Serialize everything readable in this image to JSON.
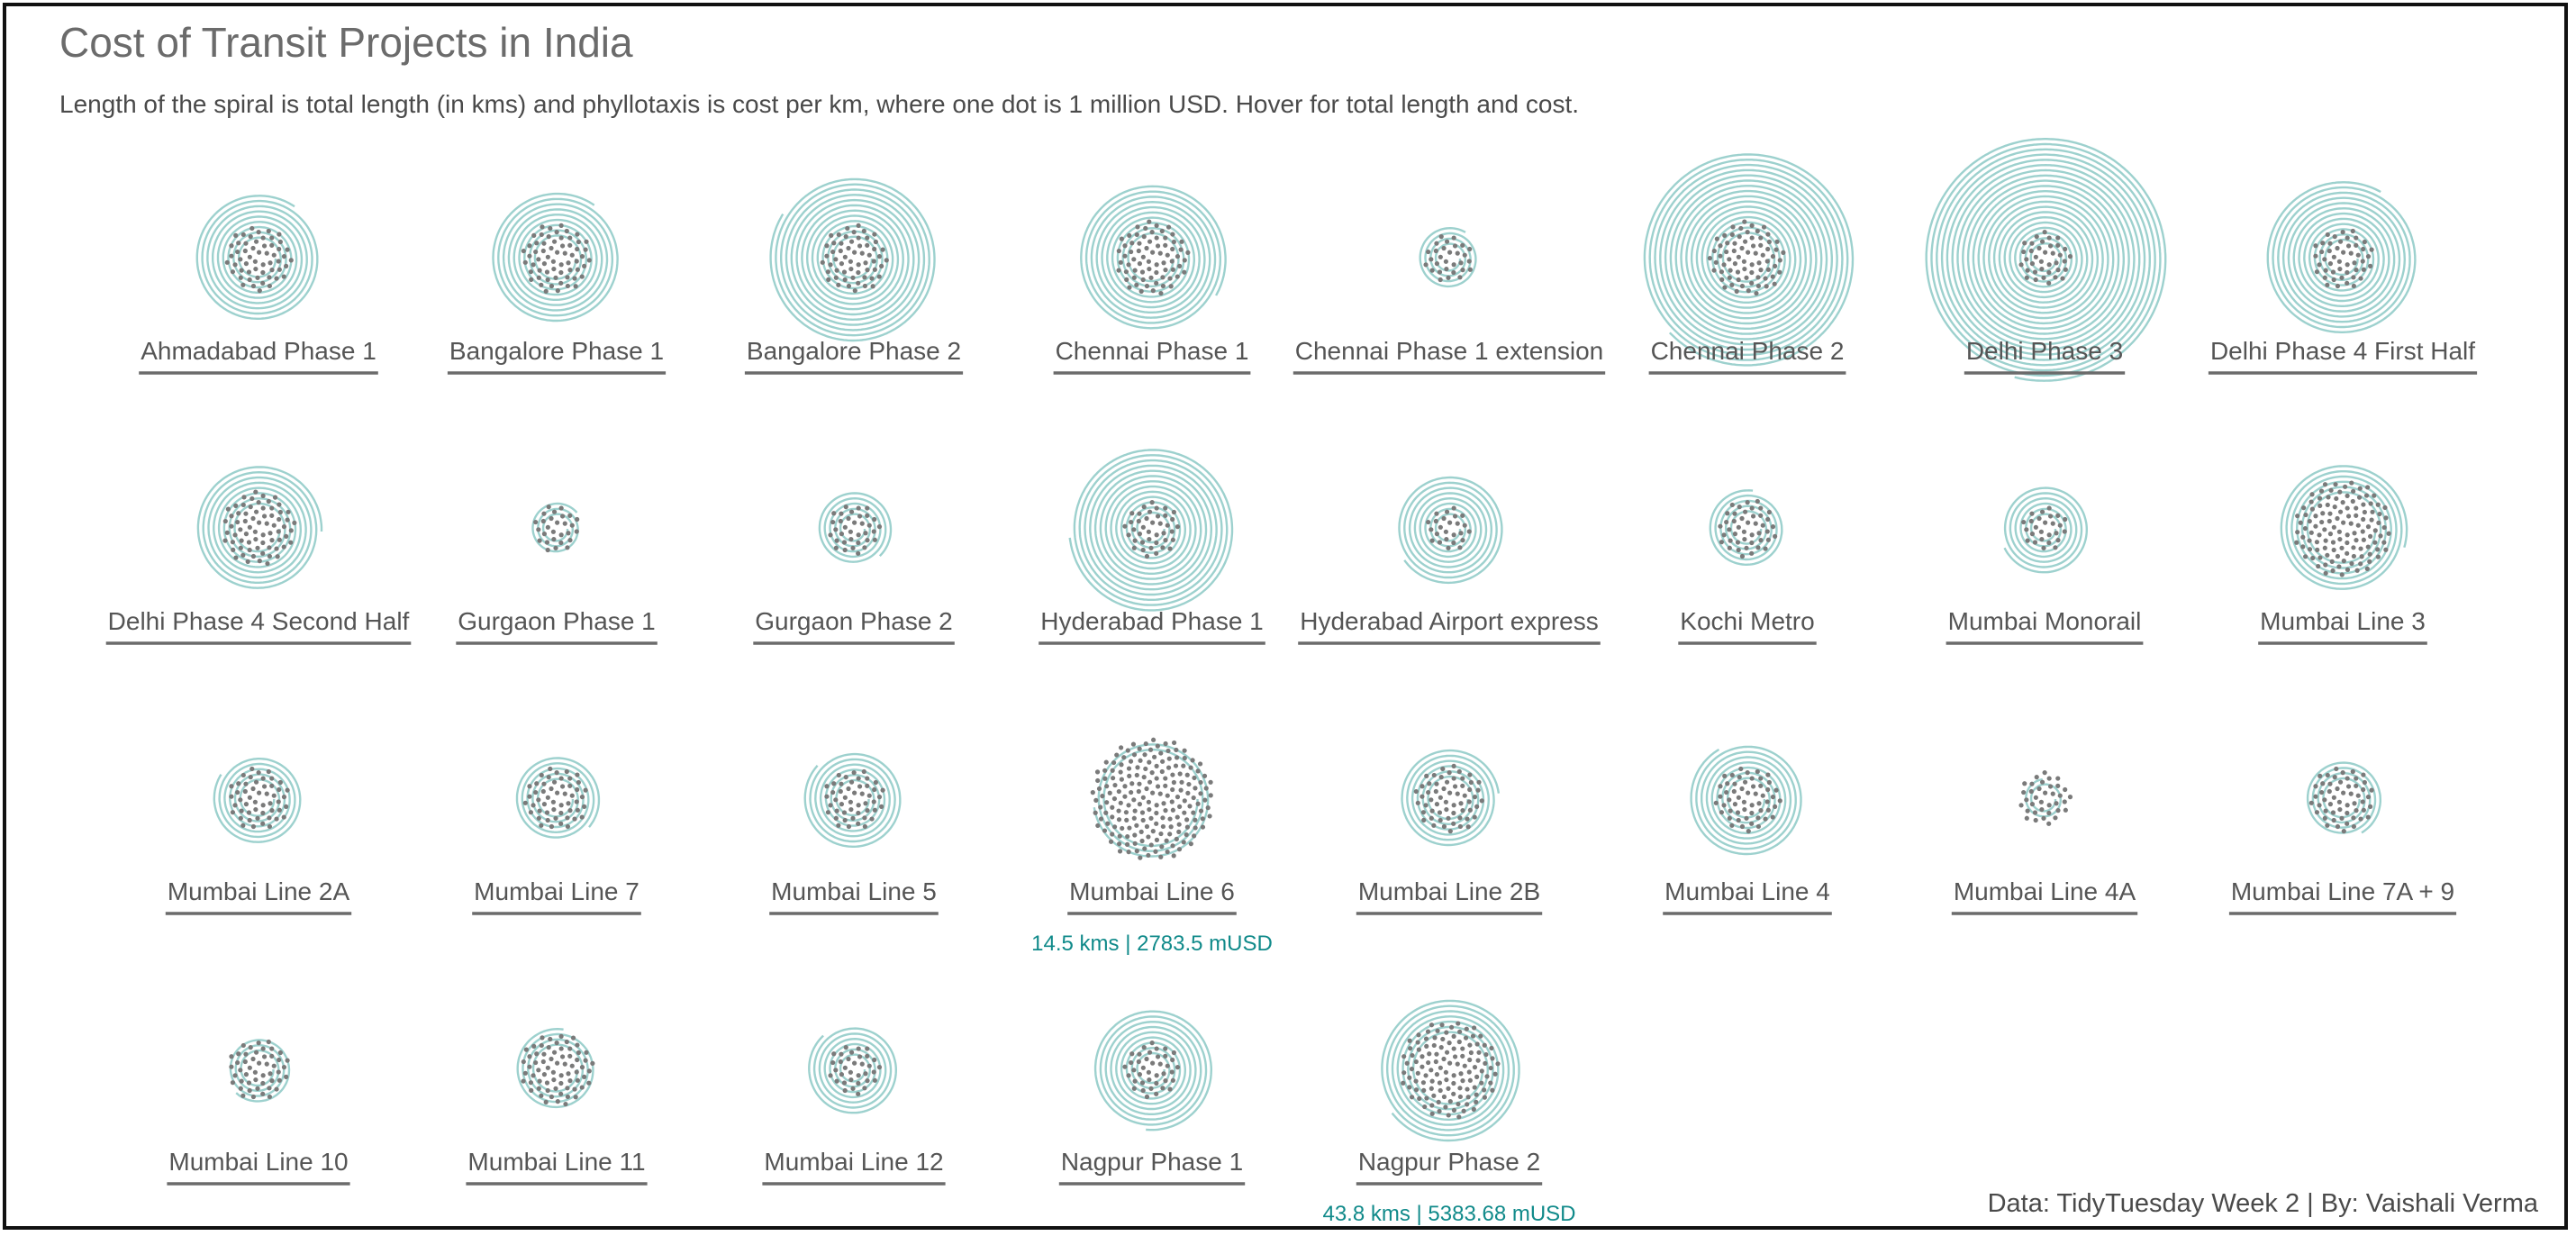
{
  "chart_data": {
    "type": "scatter",
    "title": "Cost of Transit Projects in India",
    "subtitle": "Length of the spiral is total length (in kms) and phyllotaxis is cost per km, where one dot is 1 million USD. Hover for total length and cost.",
    "legend": "none",
    "grid": false,
    "columns": 8,
    "projects": [
      {
        "name": "Ahmadabad Phase 1",
        "length_km": 40,
        "cost_per_km_musd": 55
      },
      {
        "name": "Bangalore Phase 1",
        "length_km": 42,
        "cost_per_km_musd": 62
      },
      {
        "name": "Bangalore Phase 2",
        "length_km": 72,
        "cost_per_km_musd": 58
      },
      {
        "name": "Chennai Phase 1",
        "length_km": 54,
        "cost_per_km_musd": 70
      },
      {
        "name": "Chennai Phase 1 extension",
        "length_km": 9,
        "cost_per_km_musd": 30
      },
      {
        "name": "Chennai Phase 2",
        "length_km": 119,
        "cost_per_km_musd": 72
      },
      {
        "name": "Delhi Phase 3",
        "length_km": 160,
        "cost_per_km_musd": 37
      },
      {
        "name": "Delhi Phase 4 First Half",
        "length_km": 61,
        "cost_per_km_musd": 48
      },
      {
        "name": "Delhi Phase 4 Second Half",
        "length_km": 38,
        "cost_per_km_musd": 70
      },
      {
        "name": "Gurgaon Phase 1",
        "length_km": 6,
        "cost_per_km_musd": 28
      },
      {
        "name": "Gurgaon Phase 2",
        "length_km": 14,
        "cost_per_km_musd": 35
      },
      {
        "name": "Hyderabad Phase 1",
        "length_km": 72,
        "cost_per_km_musd": 40
      },
      {
        "name": "Hyderabad Airport express",
        "length_km": 31,
        "cost_per_km_musd": 25
      },
      {
        "name": "Kochi Metro",
        "length_km": 14,
        "cost_per_km_musd": 44
      },
      {
        "name": "Mumbai Monorail",
        "length_km": 20,
        "cost_per_km_musd": 26
      },
      {
        "name": "Mumbai Line 3",
        "length_km": 33,
        "cost_per_km_musd": 120
      },
      {
        "name": "Mumbai Line 2A",
        "length_km": 19,
        "cost_per_km_musd": 50
      },
      {
        "name": "Mumbai Line 7",
        "length_km": 17,
        "cost_per_km_musd": 52
      },
      {
        "name": "Mumbai Line 5",
        "length_km": 24,
        "cost_per_km_musd": 48
      },
      {
        "name": "Mumbai Line 6",
        "length_km": 14.5,
        "cost_per_km_musd": 192,
        "total_cost_musd": 2783.5,
        "tooltip": "14.5 kms | 2783.5 mUSD"
      },
      {
        "name": "Mumbai Line 2B",
        "length_km": 23,
        "cost_per_km_musd": 60
      },
      {
        "name": "Mumbai Line 4",
        "length_km": 32,
        "cost_per_km_musd": 55
      },
      {
        "name": "Mumbai Line 4A",
        "length_km": 3,
        "cost_per_km_musd": 36
      },
      {
        "name": "Mumbai Line 7A + 9",
        "length_km": 13,
        "cost_per_km_musd": 54
      },
      {
        "name": "Mumbai Line 10",
        "length_km": 9,
        "cost_per_km_musd": 48
      },
      {
        "name": "Mumbai Line 11",
        "length_km": 13,
        "cost_per_km_musd": 68
      },
      {
        "name": "Mumbai Line 12",
        "length_km": 21,
        "cost_per_km_musd": 34
      },
      {
        "name": "Nagpur Phase 1",
        "length_km": 38,
        "cost_per_km_musd": 40
      },
      {
        "name": "Nagpur Phase 2",
        "length_km": 43.8,
        "cost_per_km_musd": 122.9,
        "total_cost_musd": 5383.68,
        "tooltip": "43.8 kms | 5383.68 mUSD"
      }
    ],
    "colors": {
      "spiral": "#8cc9c6",
      "dot": "#7a7a7a",
      "label": "#555555",
      "underline": "#6b6b6b",
      "tooltip": "#108a8a"
    }
  },
  "footer": {
    "credit": "Data: TidyTuesday Week 2 | By: Vaishali Verma"
  }
}
